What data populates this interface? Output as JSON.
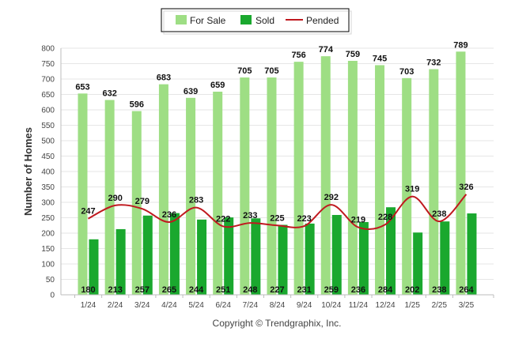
{
  "chart_data": {
    "type": "bar",
    "categories": [
      "1/24",
      "2/24",
      "3/24",
      "4/24",
      "5/24",
      "6/24",
      "7/24",
      "8/24",
      "9/24",
      "10/24",
      "11/24",
      "12/24",
      "1/25",
      "2/25",
      "3/25"
    ],
    "series": [
      {
        "name": "For Sale",
        "type": "bar",
        "color": "#9ede84",
        "values": [
          653,
          632,
          596,
          683,
          639,
          659,
          705,
          705,
          756,
          774,
          759,
          745,
          703,
          732,
          789
        ]
      },
      {
        "name": "Sold",
        "type": "bar",
        "color": "#1aa82e",
        "values": [
          180,
          213,
          257,
          265,
          244,
          251,
          248,
          227,
          231,
          259,
          236,
          284,
          202,
          238,
          264
        ]
      },
      {
        "name": "Pended",
        "type": "line",
        "color": "#c0191f",
        "values": [
          247,
          290,
          279,
          236,
          283,
          222,
          233,
          225,
          223,
          292,
          219,
          228,
          319,
          238,
          326
        ]
      }
    ],
    "ylabel": "Number of Homes",
    "xlabel": "",
    "ylim": [
      0,
      800
    ],
    "yticks": [
      0,
      50,
      100,
      150,
      200,
      250,
      300,
      350,
      400,
      450,
      500,
      550,
      600,
      650,
      700,
      750,
      800
    ],
    "grid": true,
    "legend_position": "top-center"
  },
  "footer": {
    "copyright": "Copyright © Trendgraphix, Inc."
  }
}
